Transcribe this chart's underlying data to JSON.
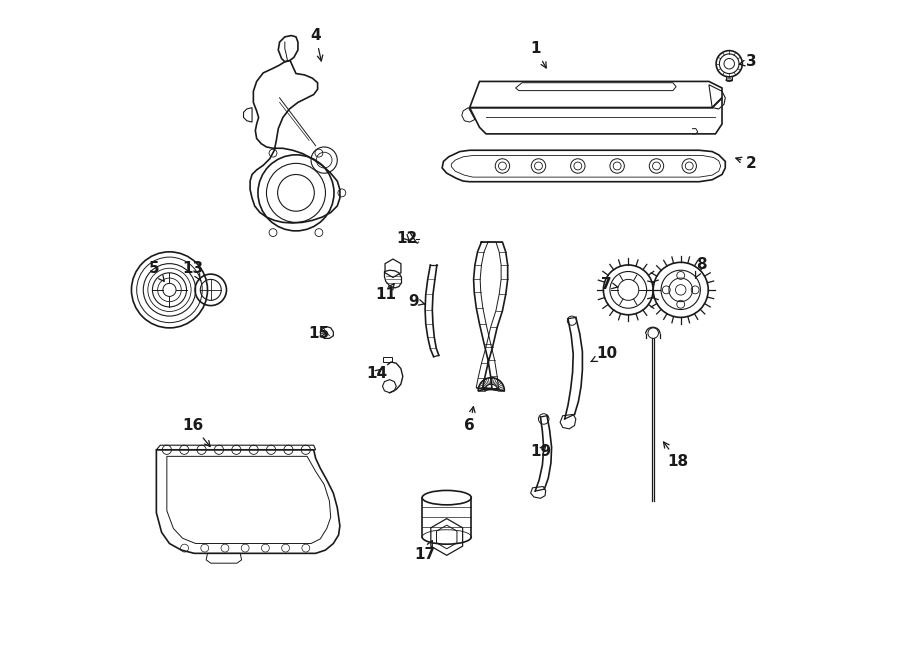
{
  "background": "#ffffff",
  "line_color": "#1a1a1a",
  "fig_width": 9.0,
  "fig_height": 6.61,
  "dpi": 100,
  "label_positions": {
    "1": [
      0.63,
      0.93,
      0.65,
      0.895
    ],
    "2": [
      0.96,
      0.755,
      0.93,
      0.765
    ],
    "3": [
      0.96,
      0.91,
      0.935,
      0.905
    ],
    "4": [
      0.295,
      0.95,
      0.305,
      0.905
    ],
    "5": [
      0.048,
      0.595,
      0.068,
      0.57
    ],
    "6": [
      0.53,
      0.355,
      0.537,
      0.39
    ],
    "7": [
      0.738,
      0.57,
      0.762,
      0.565
    ],
    "8": [
      0.884,
      0.6,
      0.872,
      0.575
    ],
    "9": [
      0.445,
      0.545,
      0.463,
      0.54
    ],
    "10": [
      0.74,
      0.465,
      0.71,
      0.45
    ],
    "11": [
      0.402,
      0.555,
      0.416,
      0.573
    ],
    "12": [
      0.435,
      0.64,
      0.442,
      0.633
    ],
    "13": [
      0.108,
      0.595,
      0.122,
      0.572
    ],
    "14": [
      0.388,
      0.435,
      0.4,
      0.445
    ],
    "15": [
      0.3,
      0.495,
      0.318,
      0.498
    ],
    "16": [
      0.108,
      0.355,
      0.138,
      0.318
    ],
    "17": [
      0.462,
      0.158,
      0.476,
      0.185
    ],
    "18": [
      0.848,
      0.3,
      0.822,
      0.335
    ],
    "19": [
      0.638,
      0.315,
      0.65,
      0.33
    ]
  }
}
